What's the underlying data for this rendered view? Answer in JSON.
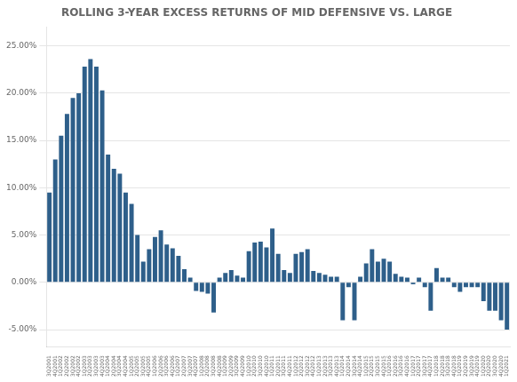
{
  "chart_data": {
    "type": "bar",
    "title": "ROLLING 3-YEAR EXCESS RETURNS OF MID DEFENSIVE VS. LARGE",
    "categories": [
      "3Q2001",
      "4Q2001",
      "1Q2002",
      "2Q2002",
      "3Q2002",
      "4Q2002",
      "1Q2003",
      "2Q2003",
      "3Q2003",
      "4Q2003",
      "1Q2004",
      "2Q2004",
      "3Q2004",
      "4Q2004",
      "1Q2005",
      "2Q2005",
      "3Q2005",
      "4Q2005",
      "1Q2006",
      "2Q2006",
      "3Q2006",
      "4Q2006",
      "1Q2007",
      "2Q2007",
      "3Q2007",
      "4Q2007",
      "1Q2008",
      "2Q2008",
      "3Q2008",
      "4Q2008",
      "1Q2009",
      "2Q2009",
      "3Q2009",
      "4Q2009",
      "1Q2010",
      "2Q2010",
      "3Q2010",
      "4Q2010",
      "1Q2011",
      "2Q2011",
      "3Q2011",
      "4Q2011",
      "1Q2012",
      "2Q2012",
      "3Q2012",
      "4Q2012",
      "1Q2013",
      "2Q2013",
      "3Q2013",
      "4Q2013",
      "1Q2014",
      "2Q2014",
      "3Q2014",
      "4Q2014",
      "1Q2015",
      "2Q2015",
      "3Q2015",
      "4Q2015",
      "1Q2016",
      "2Q2016",
      "3Q2016",
      "4Q2016",
      "1Q2017",
      "2Q2017",
      "3Q2017",
      "4Q2017",
      "1Q2018",
      "2Q2018",
      "3Q2018",
      "4Q2018",
      "1Q2019",
      "2Q2019",
      "3Q2019",
      "4Q2019",
      "1Q2020",
      "2Q2020",
      "3Q2020",
      "4Q2020",
      "1Q2021"
    ],
    "values": [
      0.095,
      0.13,
      0.155,
      0.178,
      0.195,
      0.2,
      0.228,
      0.236,
      0.228,
      0.203,
      0.135,
      0.12,
      0.115,
      0.095,
      0.083,
      0.05,
      0.022,
      0.035,
      0.048,
      0.055,
      0.04,
      0.036,
      0.028,
      0.014,
      0.005,
      -0.009,
      -0.01,
      -0.012,
      -0.032,
      0.005,
      0.01,
      0.013,
      0.007,
      0.005,
      0.033,
      0.042,
      0.043,
      0.037,
      0.057,
      0.03,
      0.013,
      0.01,
      0.03,
      0.032,
      0.035,
      0.012,
      0.01,
      0.008,
      0.006,
      0.006,
      -0.04,
      -0.005,
      -0.04,
      0.006,
      0.02,
      0.035,
      0.022,
      0.025,
      0.022,
      0.009,
      0.006,
      0.005,
      -0.002,
      0.005,
      -0.005,
      -0.03,
      0.015,
      0.005,
      0.005,
      -0.005,
      -0.01,
      -0.005,
      -0.005,
      -0.005,
      -0.02,
      -0.03,
      -0.03,
      -0.04,
      -0.05
    ],
    "color": "#2e5f8a",
    "ylim": [
      -0.068,
      0.27
    ],
    "yticks": [
      {
        "value": -0.05,
        "label": "-5.00%"
      },
      {
        "value": 0.0,
        "label": "0.00%"
      },
      {
        "value": 0.05,
        "label": "5.00%"
      },
      {
        "value": 0.1,
        "label": "10.00%"
      },
      {
        "value": 0.15,
        "label": "15.00%"
      },
      {
        "value": 0.2,
        "label": "20.00%"
      },
      {
        "value": 0.25,
        "label": "25.00%"
      }
    ],
    "grid": true
  }
}
